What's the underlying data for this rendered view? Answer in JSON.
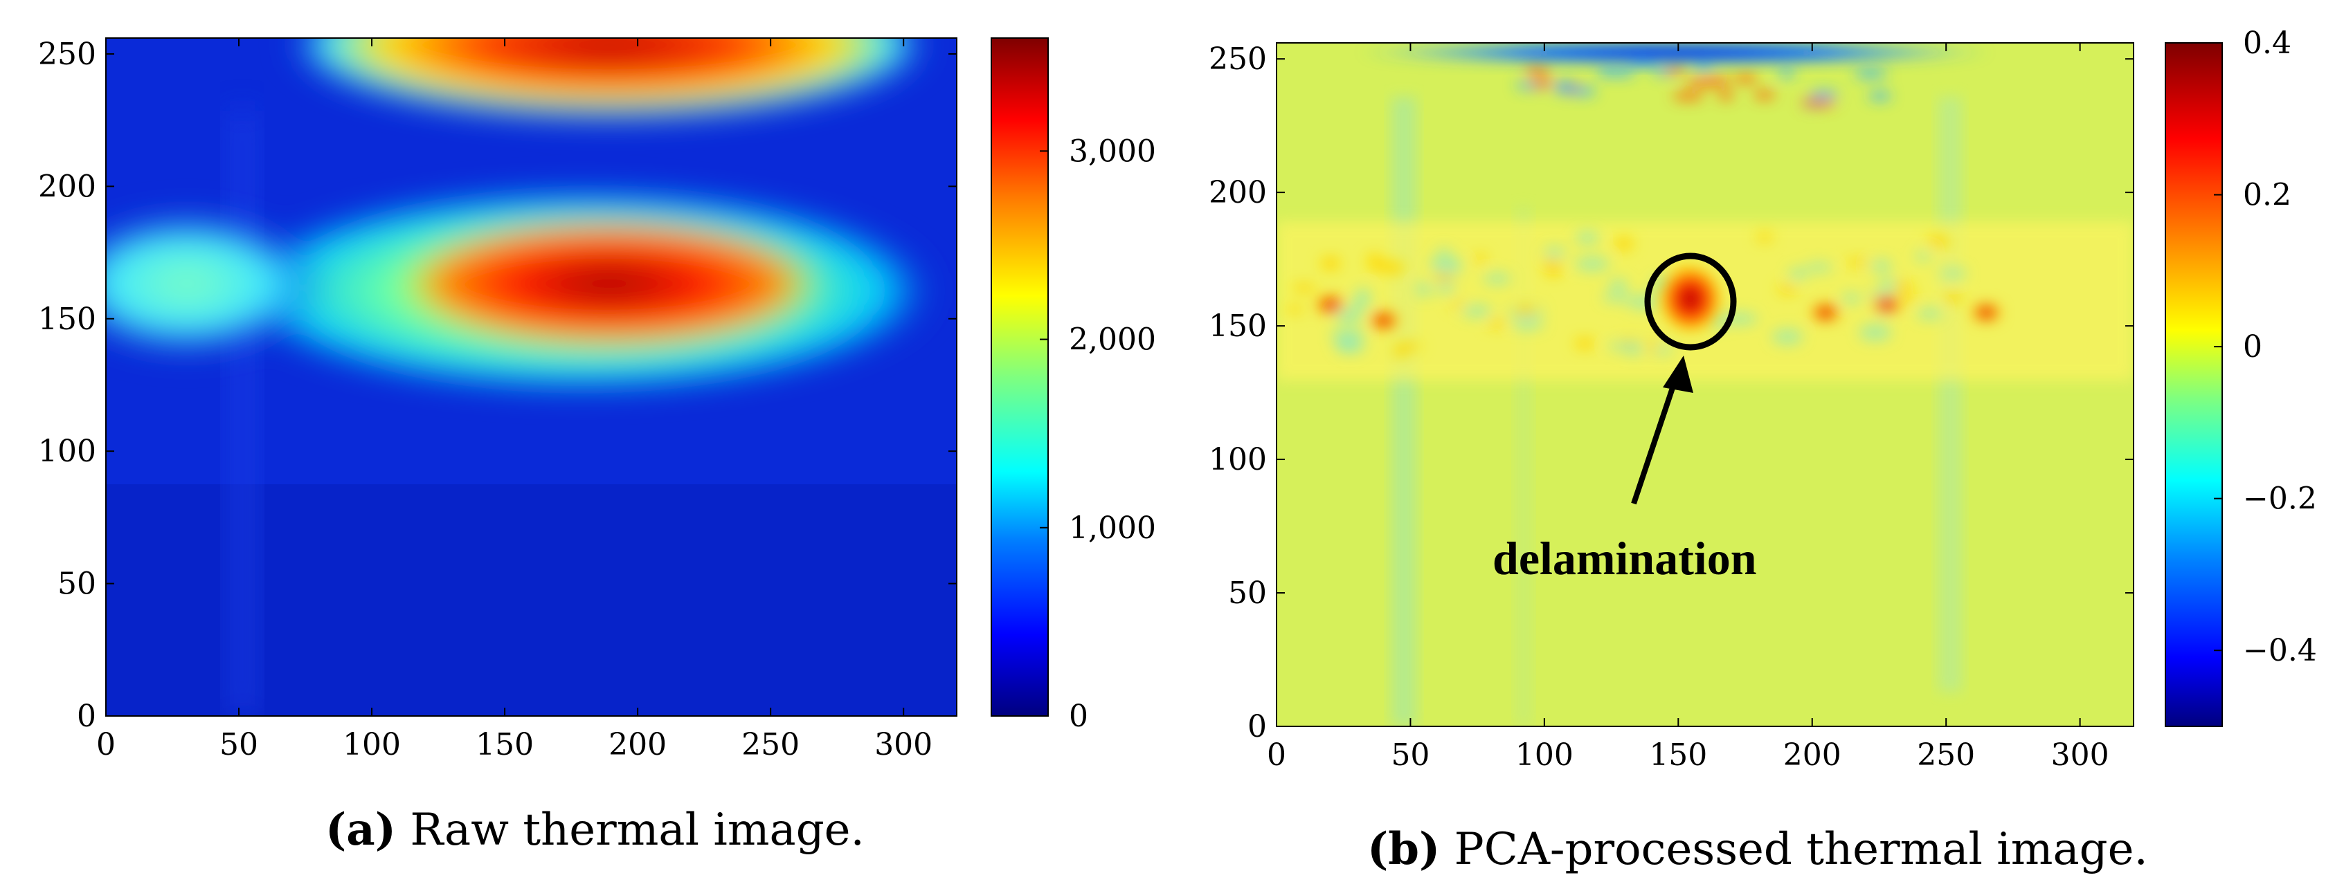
{
  "colors": {
    "jet": [
      "#00007f",
      "#0000ff",
      "#007fff",
      "#00ffff",
      "#7fff7f",
      "#ffff00",
      "#ff7f00",
      "#ff0000",
      "#7f0000"
    ],
    "low_field": "#0a2ad8",
    "mid_field": "#d6f05a"
  },
  "chart_data": [
    {
      "type": "heatmap",
      "title": "",
      "xlabel": "",
      "ylabel": "",
      "xlim": [
        0,
        320
      ],
      "ylim": [
        0,
        256
      ],
      "x_ticks": [
        "0",
        "50",
        "100",
        "150",
        "200",
        "250",
        "300"
      ],
      "y_ticks": [
        "0",
        "50",
        "100",
        "150",
        "200",
        "250"
      ],
      "colorbar": {
        "range": [
          0,
          3600
        ],
        "ticks": [
          "0",
          "1,000",
          "2,000",
          "3,000"
        ]
      },
      "background_value": 200,
      "hot_regions": [
        {
          "x_center": 180,
          "y_center": 162,
          "x_halfwidth": 85,
          "y_halfwidth": 22,
          "value": 2600
        },
        {
          "x_center": 190,
          "y_center": 160,
          "x_halfwidth": 35,
          "y_halfwidth": 15,
          "value": 3300
        },
        {
          "x_center": 30,
          "y_center": 165,
          "x_halfwidth": 30,
          "y_halfwidth": 18,
          "value": 1400
        },
        {
          "x_center": 190,
          "y_center": 254,
          "x_halfwidth": 70,
          "y_halfwidth": 15,
          "value": 3000
        }
      ]
    },
    {
      "type": "heatmap",
      "title": "",
      "xlabel": "",
      "ylabel": "",
      "xlim": [
        0,
        320
      ],
      "ylim": [
        0,
        256
      ],
      "x_ticks": [
        "0",
        "50",
        "100",
        "150",
        "200",
        "250",
        "300"
      ],
      "y_ticks": [
        "0",
        "50",
        "100",
        "150",
        "200",
        "250"
      ],
      "colorbar": {
        "range": [
          -0.5,
          0.4
        ],
        "ticks": [
          "0.4",
          "0.2",
          "0",
          "−0.2",
          "−0.4"
        ]
      },
      "background_value": -0.05,
      "annotation": {
        "text": "delamination",
        "x": 157,
        "y": 160
      },
      "hot_spots": [
        {
          "x": 157,
          "y": 160,
          "value": 0.35
        },
        {
          "x": 20,
          "y": 158,
          "value": 0.28
        },
        {
          "x": 40,
          "y": 152,
          "value": 0.28
        },
        {
          "x": 265,
          "y": 155,
          "value": 0.2
        },
        {
          "x": 228,
          "y": 158,
          "value": 0.3
        },
        {
          "x": 205,
          "y": 155,
          "value": 0.28
        }
      ],
      "cold_band": {
        "y": 252,
        "x_from": 90,
        "x_to": 240,
        "value": -0.45
      }
    }
  ],
  "captions": [
    {
      "label": "(a)",
      "text": "Raw thermal image."
    },
    {
      "label": "(b)",
      "text": "PCA-processed thermal image."
    }
  ]
}
